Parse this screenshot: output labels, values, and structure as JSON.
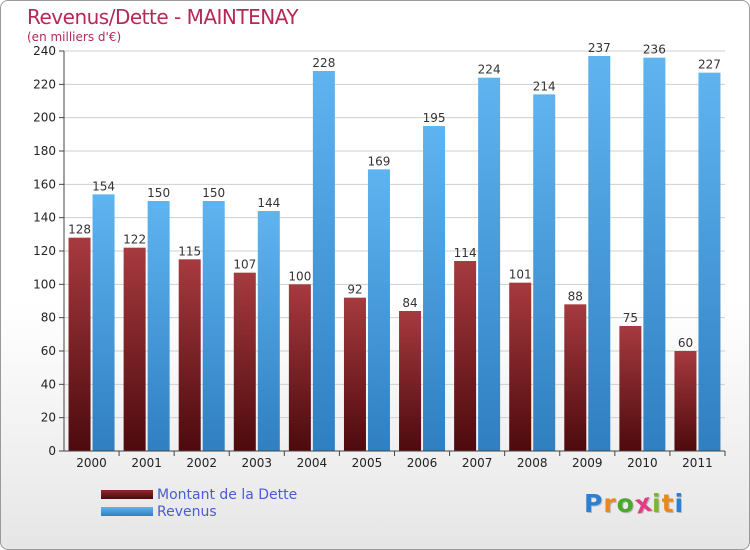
{
  "title": "Revenus/Dette - MAINTENAY",
  "subtitle": "(en milliers d'€)",
  "logo": {
    "letters": [
      "P",
      "r",
      "o",
      "x",
      "i",
      "t",
      "i"
    ],
    "colors": [
      "#2d7fd1",
      "#e8891c",
      "#4aa82b",
      "#e23d84",
      "#7bb72a",
      "#e8891c",
      "#2d7fd1"
    ]
  },
  "chart_data": {
    "type": "bar",
    "title": "Revenus/Dette - MAINTENAY",
    "ylabel": "(en milliers d'€)",
    "xlabel": "",
    "categories": [
      "2000",
      "2001",
      "2002",
      "2003",
      "2004",
      "2005",
      "2006",
      "2007",
      "2008",
      "2009",
      "2010",
      "2011"
    ],
    "series": [
      {
        "name": "Montant de la Dette",
        "color": "#7a1f22",
        "values": [
          128,
          122,
          115,
          107,
          100,
          92,
          84,
          114,
          101,
          88,
          75,
          60
        ]
      },
      {
        "name": "Revenus",
        "color": "#4aa3e6",
        "values": [
          154,
          150,
          150,
          144,
          228,
          169,
          195,
          224,
          214,
          237,
          236,
          227
        ]
      }
    ],
    "ylim": [
      0,
      240
    ],
    "yticks": [
      0,
      20,
      40,
      60,
      80,
      100,
      120,
      140,
      160,
      180,
      200,
      220,
      240
    ],
    "grid": true,
    "legend_position": "bottom-left"
  }
}
